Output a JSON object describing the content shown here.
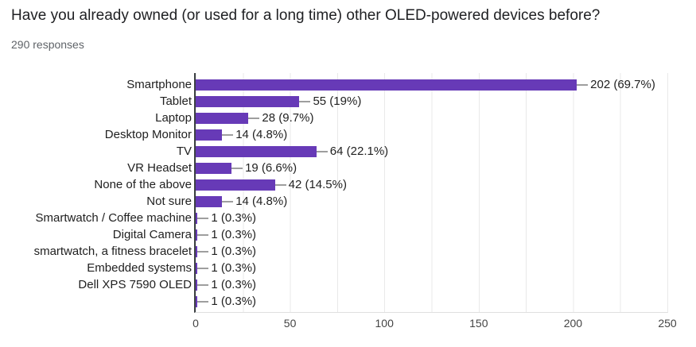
{
  "header": {
    "title": "Have you already owned (or used for a long time) other OLED-powered devices before?",
    "subtitle": "290 responses"
  },
  "colors": {
    "bar": "#673ab7",
    "gridline": "#e9e9e9",
    "axis": "#3c4043",
    "plot-bottom": "#e0e0e0",
    "connector": "#9e9e9e",
    "title-text": "#202124",
    "subtitle-text": "#5f6368",
    "label-text": "#212121",
    "tick-text": "#444444"
  },
  "chart_data": {
    "type": "bar",
    "orientation": "horizontal",
    "title": "Have you already owned (or used for a long time) other OLED-powered devices before?",
    "subtitle": "290 responses",
    "total_responses": 290,
    "categories": [
      "Smartphone",
      "Tablet",
      "Laptop",
      "Desktop Monitor",
      "TV",
      "VR Headset",
      "None of the above",
      "Not sure",
      "Smartwatch / Coffee machine",
      "Digital Camera",
      "smartwatch, a fitness bracelet",
      "Embedded systems",
      "Dell XPS 7590 OLED",
      ""
    ],
    "values": [
      202,
      55,
      28,
      14,
      64,
      19,
      42,
      14,
      1,
      1,
      1,
      1,
      1,
      1
    ],
    "value_labels": [
      "202 (69.7%)",
      "55 (19%)",
      "28 (9.7%)",
      "14 (4.8%)",
      "64 (22.1%)",
      "19 (6.6%)",
      "42 (14.5%)",
      "14 (4.8%)",
      "1 (0.3%)",
      "1 (0.3%)",
      "1 (0.3%)",
      "1 (0.3%)",
      "1 (0.3%)",
      "1 (0.3%)"
    ],
    "xlabel": "",
    "ylabel": "",
    "xlim": [
      0,
      250
    ],
    "x_ticks": [
      0,
      50,
      100,
      150,
      200,
      250
    ],
    "gridline_step": 25,
    "legend": "none",
    "grid": true
  }
}
